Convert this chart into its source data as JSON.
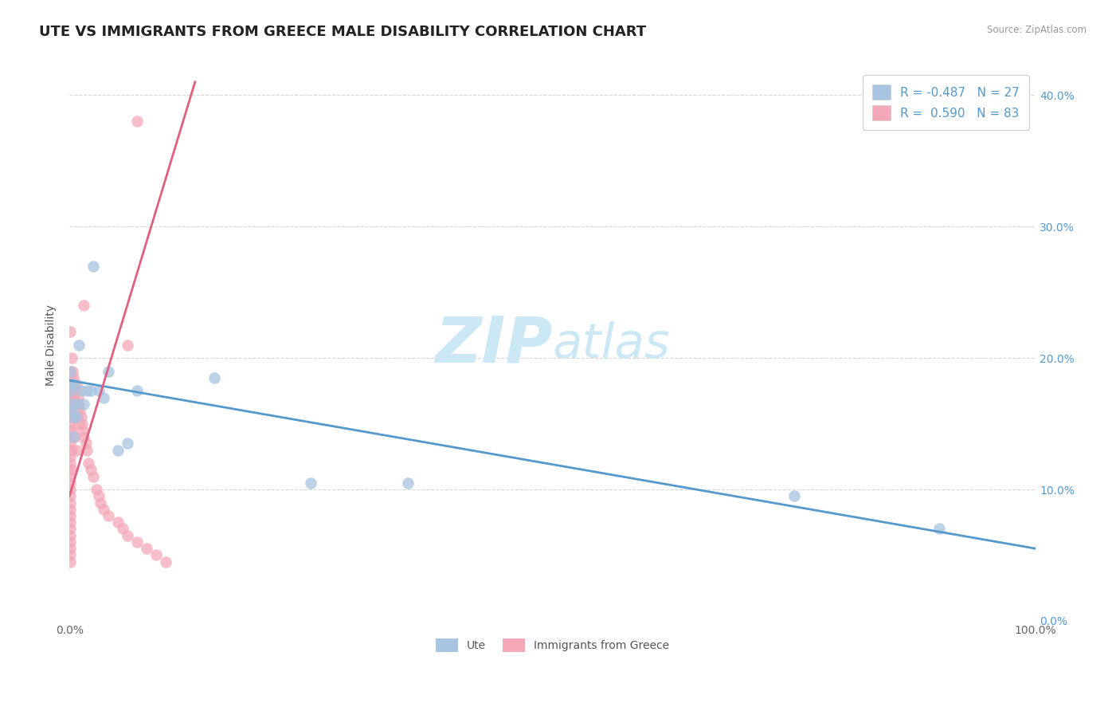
{
  "title": "UTE VS IMMIGRANTS FROM GREECE MALE DISABILITY CORRELATION CHART",
  "source": "Source: ZipAtlas.com",
  "ylabel": "Male Disability",
  "watermark_zip": "ZIP",
  "watermark_atlas": "atlas",
  "legend_entries": [
    {
      "label": "R = -0.487   N = 27",
      "color": "#a8c4e0"
    },
    {
      "label": "R =  0.590   N = 83",
      "color": "#f4a8b8"
    }
  ],
  "ute_scatter_x": [
    0.001,
    0.002,
    0.003,
    0.004,
    0.005,
    0.007,
    0.008,
    0.01,
    0.012,
    0.015,
    0.018,
    0.022,
    0.025,
    0.03,
    0.035,
    0.04,
    0.05,
    0.06,
    0.07,
    0.15,
    0.25,
    0.35,
    0.75,
    0.9,
    0.001,
    0.002,
    0.003
  ],
  "ute_scatter_y": [
    0.19,
    0.18,
    0.165,
    0.14,
    0.18,
    0.155,
    0.165,
    0.21,
    0.175,
    0.165,
    0.175,
    0.175,
    0.27,
    0.175,
    0.17,
    0.19,
    0.13,
    0.135,
    0.175,
    0.185,
    0.105,
    0.105,
    0.095,
    0.07,
    0.175,
    0.16,
    0.155
  ],
  "greece_scatter_x": [
    0.001,
    0.001,
    0.001,
    0.001,
    0.001,
    0.001,
    0.001,
    0.001,
    0.001,
    0.001,
    0.001,
    0.001,
    0.001,
    0.001,
    0.001,
    0.001,
    0.001,
    0.001,
    0.001,
    0.001,
    0.001,
    0.001,
    0.001,
    0.001,
    0.001,
    0.001,
    0.001,
    0.001,
    0.001,
    0.001,
    0.002,
    0.002,
    0.002,
    0.002,
    0.002,
    0.003,
    0.003,
    0.003,
    0.004,
    0.004,
    0.005,
    0.005,
    0.006,
    0.007,
    0.007,
    0.008,
    0.008,
    0.009,
    0.009,
    0.01,
    0.01,
    0.011,
    0.012,
    0.013,
    0.014,
    0.015,
    0.017,
    0.018,
    0.02,
    0.022,
    0.025,
    0.028,
    0.03,
    0.032,
    0.035,
    0.04,
    0.05,
    0.055,
    0.06,
    0.07,
    0.08,
    0.09,
    0.1,
    0.015,
    0.06,
    0.07,
    0.001,
    0.002,
    0.003,
    0.004,
    0.005,
    0.006,
    0.007
  ],
  "greece_scatter_y": [
    0.19,
    0.185,
    0.18,
    0.175,
    0.17,
    0.165,
    0.16,
    0.155,
    0.15,
    0.145,
    0.14,
    0.135,
    0.13,
    0.125,
    0.12,
    0.115,
    0.11,
    0.105,
    0.1,
    0.095,
    0.09,
    0.085,
    0.08,
    0.075,
    0.07,
    0.065,
    0.06,
    0.055,
    0.05,
    0.045,
    0.18,
    0.16,
    0.145,
    0.13,
    0.115,
    0.19,
    0.175,
    0.16,
    0.185,
    0.17,
    0.18,
    0.165,
    0.175,
    0.18,
    0.165,
    0.175,
    0.16,
    0.17,
    0.155,
    0.165,
    0.15,
    0.16,
    0.155,
    0.15,
    0.145,
    0.14,
    0.135,
    0.13,
    0.12,
    0.115,
    0.11,
    0.1,
    0.095,
    0.09,
    0.085,
    0.08,
    0.075,
    0.07,
    0.065,
    0.06,
    0.055,
    0.05,
    0.045,
    0.24,
    0.21,
    0.38,
    0.22,
    0.2,
    0.17,
    0.16,
    0.155,
    0.14,
    0.13
  ],
  "ute_line_x": [
    0.0,
    1.0
  ],
  "ute_line_y": [
    0.183,
    0.055
  ],
  "greece_line_x": [
    0.0,
    0.13
  ],
  "greece_line_y": [
    0.095,
    0.41
  ],
  "xlim": [
    0.0,
    1.0
  ],
  "ylim": [
    0.0,
    0.42
  ],
  "yticks": [
    0.0,
    0.1,
    0.2,
    0.3,
    0.4
  ],
  "ytick_labels_left": [
    "",
    "",
    "",
    "",
    ""
  ],
  "ytick_labels_right": [
    "0.0%",
    "10.0%",
    "20.0%",
    "30.0%",
    "40.0%"
  ],
  "xticks": [
    0.0,
    0.1,
    0.2,
    0.3,
    0.4,
    0.5,
    0.6,
    0.7,
    0.8,
    0.9,
    1.0
  ],
  "xtick_labels": [
    "0.0%",
    "",
    "",
    "",
    "",
    "",
    "",
    "",
    "",
    "",
    "100.0%"
  ],
  "grid_color": "#cccccc",
  "bg_color": "#ffffff",
  "title_fontsize": 13,
  "axis_label_fontsize": 10,
  "tick_fontsize": 10,
  "ute_dot_color": "#a8c4e0",
  "greece_dot_color": "#f4a8b8",
  "ute_line_color": "#5599cc",
  "greece_line_color": "#e06080",
  "watermark_color": "#cce8f4",
  "right_ytick_color": "#5599cc",
  "bottom_legend": [
    "Ute",
    "Immigrants from Greece"
  ]
}
